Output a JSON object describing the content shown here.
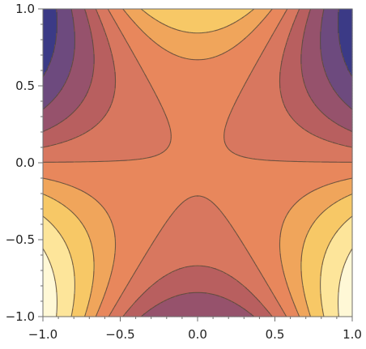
{
  "chart_data": {
    "type": "contour",
    "function": "y^3 - 3 x^2 y",
    "xlim": [
      -1.0,
      1.0
    ],
    "ylim": [
      -1.0,
      1.0
    ],
    "x_ticks": [
      -1.0,
      -0.5,
      0.0,
      0.5,
      1.0
    ],
    "y_ticks": [
      -1.0,
      -0.5,
      0.0,
      0.5,
      1.0
    ],
    "x_tick_labels": [
      "-1.0",
      "-0.5",
      "0.0",
      "0.5",
      "1.0"
    ],
    "y_tick_labels": [
      "-1.0",
      "-0.5",
      "0.0",
      "0.5",
      "1.0"
    ],
    "contour_levels": [
      -1.5,
      -1.0,
      -0.6,
      -0.3,
      -0.01,
      0.3,
      0.6,
      1.0,
      1.5
    ],
    "fill_colors": [
      "#3b3a86",
      "#6d4a7e",
      "#96526c",
      "#b85f5f",
      "#d8775f",
      "#e8875c",
      "#f0a55b",
      "#f7c866",
      "#fde59a",
      "#fff8d6"
    ],
    "contour_line_color": "#5a4a3a",
    "title": "",
    "xlabel": "",
    "ylabel": ""
  }
}
